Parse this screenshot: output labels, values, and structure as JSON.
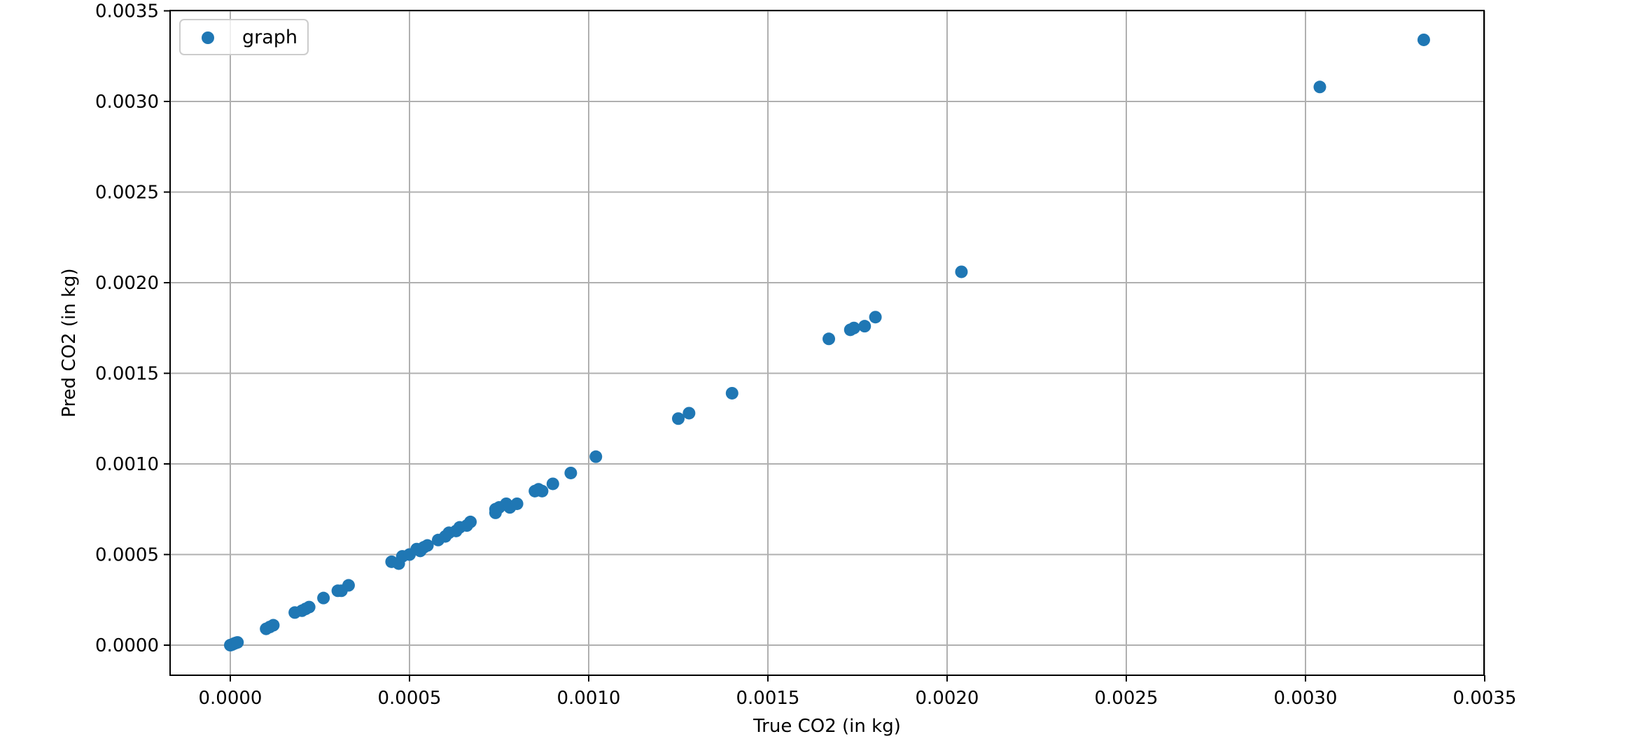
{
  "chart_data": {
    "type": "scatter",
    "xlabel": "True CO2 (in kg)",
    "ylabel": "Pred CO2 (in kg)",
    "xlim": [
      -0.000165,
      0.0035
    ],
    "ylim": [
      -0.000165,
      0.0035
    ],
    "x_ticks": [
      "0.0000",
      "0.0005",
      "0.0010",
      "0.0015",
      "0.0020",
      "0.0025",
      "0.0030",
      "0.0035"
    ],
    "y_ticks": [
      "0.0000",
      "0.0005",
      "0.0010",
      "0.0015",
      "0.0020",
      "0.0025",
      "0.0030",
      "0.0035"
    ],
    "grid": true,
    "legend_position": "top-left",
    "series": [
      {
        "name": "graph",
        "color": "#1f77b4",
        "marker": "circle",
        "points": [
          [
            0.0,
            0.0
          ],
          [
            5e-06,
            3e-06
          ],
          [
            1e-05,
            8e-06
          ],
          [
            1.5e-05,
            1.2e-05
          ],
          [
            2e-05,
            1.5e-05
          ],
          [
            0.0001,
            9e-05
          ],
          [
            0.00011,
            0.0001
          ],
          [
            0.00012,
            0.00011
          ],
          [
            0.00018,
            0.00018
          ],
          [
            0.0002,
            0.00019
          ],
          [
            0.00021,
            0.0002
          ],
          [
            0.00022,
            0.00021
          ],
          [
            0.00026,
            0.00026
          ],
          [
            0.0003,
            0.0003
          ],
          [
            0.00031,
            0.0003
          ],
          [
            0.00033,
            0.00033
          ],
          [
            0.00045,
            0.00046
          ],
          [
            0.00047,
            0.00045
          ],
          [
            0.00048,
            0.00049
          ],
          [
            0.0005,
            0.0005
          ],
          [
            0.00052,
            0.00053
          ],
          [
            0.00053,
            0.00052
          ],
          [
            0.00054,
            0.00054
          ],
          [
            0.00055,
            0.00055
          ],
          [
            0.00058,
            0.00058
          ],
          [
            0.0006,
            0.0006
          ],
          [
            0.00061,
            0.00062
          ],
          [
            0.00063,
            0.00063
          ],
          [
            0.00064,
            0.00065
          ],
          [
            0.00066,
            0.00066
          ],
          [
            0.00067,
            0.00068
          ],
          [
            0.00074,
            0.00073
          ],
          [
            0.00074,
            0.00075
          ],
          [
            0.00075,
            0.00076
          ],
          [
            0.00077,
            0.00078
          ],
          [
            0.00078,
            0.00076
          ],
          [
            0.0008,
            0.00078
          ],
          [
            0.00085,
            0.00085
          ],
          [
            0.00086,
            0.00086
          ],
          [
            0.00087,
            0.00085
          ],
          [
            0.0009,
            0.00089
          ],
          [
            0.00095,
            0.00095
          ],
          [
            0.00102,
            0.00104
          ],
          [
            0.00125,
            0.00125
          ],
          [
            0.00128,
            0.00128
          ],
          [
            0.0014,
            0.00139
          ],
          [
            0.00167,
            0.00169
          ],
          [
            0.00173,
            0.00174
          ],
          [
            0.00174,
            0.00175
          ],
          [
            0.00177,
            0.00176
          ],
          [
            0.0018,
            0.00181
          ],
          [
            0.00204,
            0.00206
          ],
          [
            0.00304,
            0.00308
          ],
          [
            0.00333,
            0.00334
          ]
        ]
      }
    ]
  }
}
